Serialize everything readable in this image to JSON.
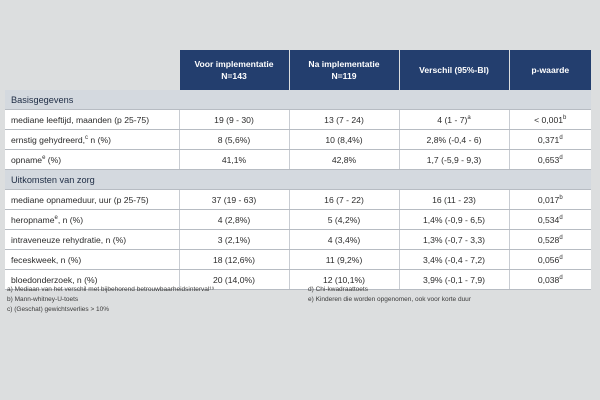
{
  "table": {
    "headers": [
      {
        "line1": "Voor implementatie",
        "line2": "N=143"
      },
      {
        "line1": "Na implementatie",
        "line2": "N=119"
      },
      {
        "line1": "Verschil (95%-BI)",
        "line2": ""
      },
      {
        "line1": "p-waarde",
        "line2": ""
      }
    ],
    "sections": [
      {
        "title": "Basisgegevens",
        "rows": [
          {
            "label": "mediane leeftijd, maanden (p 25-75)",
            "label_sup": "",
            "label_after": "",
            "before": "19 (9 - 30)",
            "after": "13 (7 - 24)",
            "diff": "4 (1 - 7)",
            "diff_sup": "a",
            "p": "< 0,001",
            "p_sup": "b"
          },
          {
            "label": "ernstig gehydreerd,",
            "label_sup": "c",
            "label_after": " n (%)",
            "before": "8 (5,6%)",
            "after": "10 (8,4%)",
            "diff": "2,8% (-0,4 - 6)",
            "diff_sup": "",
            "p": "0,371",
            "p_sup": "d"
          },
          {
            "label": "opname",
            "label_sup": "e",
            "label_after": " (%)",
            "before": "41,1%",
            "after": "42,8%",
            "diff": "1,7 (-5,9 - 9,3)",
            "diff_sup": "",
            "p": "0,653",
            "p_sup": "d"
          }
        ]
      },
      {
        "title": "Uitkomsten van zorg",
        "rows": [
          {
            "label": "mediane opnameduur, uur (p 25-75)",
            "label_sup": "",
            "label_after": "",
            "before": "37 (19 - 63)",
            "after": "16 (7 - 22)",
            "diff": "16 (11 - 23)",
            "diff_sup": "",
            "p": "0,017",
            "p_sup": "b"
          },
          {
            "label": "heropname",
            "label_sup": "e",
            "label_after": ", n (%)",
            "before": "4 (2,8%)",
            "after": "5 (4,2%)",
            "diff": "1,4% (-0,9 - 6,5)",
            "diff_sup": "",
            "p": "0,534",
            "p_sup": "d"
          },
          {
            "label": "intraveneuze rehydratie, n (%)",
            "label_sup": "",
            "label_after": "",
            "before": "3 (2,1%)",
            "after": "4 (3,4%)",
            "diff": "1,3% (-0,7 - 3,3)",
            "diff_sup": "",
            "p": "0,528",
            "p_sup": "d"
          },
          {
            "label": "feceskweek, n (%)",
            "label_sup": "",
            "label_after": "",
            "before": "18 (12,6%)",
            "after": "11 (9,2%)",
            "diff": "3,4% (-0,4 - 7,2)",
            "diff_sup": "",
            "p": "0,056",
            "p_sup": "d"
          },
          {
            "label": "bloedonderzoek, n (%)",
            "label_sup": "",
            "label_after": "",
            "before": "20 (14,0%)",
            "after": "12 (10,1%)",
            "diff": "3,9% (-0,1 - 7,9)",
            "diff_sup": "",
            "p": "0,038",
            "p_sup": "d"
          }
        ]
      }
    ]
  },
  "footnotes": {
    "left": [
      "a) Mediaan van het verschil met bijbehorend betrouwbaarheidsinterval¹⁹",
      "b) Mann-whitney-U-toets",
      "c) (Geschat) gewichtsverlies > 10%"
    ],
    "right": [
      "d) Chi-kwadraattoets",
      "e) Kinderen die worden opgenomen, ook voor korte duur"
    ]
  },
  "colors": {
    "header_bg": "#233e6e",
    "section_bg": "#d4d9df",
    "page_bg": "#dcdedf"
  }
}
